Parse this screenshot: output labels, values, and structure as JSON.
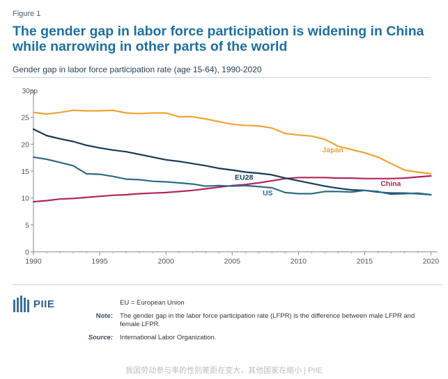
{
  "figure_label": "Figure 1",
  "title": "The gender gap in labor force participation is widening in China while narrowing in other parts of the world",
  "chart_data": {
    "type": "line",
    "subtitle": "Gender gap in labor force participation rate (age 15-64), 1990-2020",
    "x": [
      1990,
      1991,
      1992,
      1993,
      1994,
      1995,
      1996,
      1997,
      1998,
      1999,
      2000,
      2001,
      2002,
      2003,
      2004,
      2005,
      2006,
      2007,
      2008,
      2009,
      2010,
      2011,
      2012,
      2013,
      2014,
      2015,
      2016,
      2017,
      2018,
      2019,
      2020
    ],
    "series": [
      {
        "name": "Japan",
        "color": "#f0a233",
        "values": [
          25.9,
          25.6,
          25.9,
          26.3,
          26.2,
          26.2,
          26.3,
          25.8,
          25.7,
          25.8,
          25.8,
          25.1,
          25.1,
          24.7,
          24.2,
          23.7,
          23.5,
          23.4,
          23.0,
          22.0,
          21.7,
          21.5,
          20.9,
          19.6,
          19.0,
          18.4,
          17.6,
          16.4,
          15.2,
          14.8,
          14.5
        ]
      },
      {
        "name": "China",
        "color": "#b2245c",
        "values": [
          9.3,
          9.5,
          9.8,
          9.9,
          10.1,
          10.3,
          10.5,
          10.6,
          10.8,
          10.9,
          11.0,
          11.2,
          11.4,
          11.7,
          12.0,
          12.3,
          12.5,
          12.8,
          13.2,
          13.6,
          13.8,
          13.8,
          13.8,
          13.7,
          13.7,
          13.6,
          13.6,
          13.6,
          13.7,
          13.9,
          14.1
        ]
      },
      {
        "name": "EU28",
        "color": "#163a56",
        "values": [
          22.8,
          21.6,
          21.0,
          20.5,
          19.8,
          19.3,
          18.9,
          18.6,
          18.1,
          17.6,
          17.1,
          16.8,
          16.4,
          16.0,
          15.5,
          15.2,
          14.8,
          14.6,
          14.3,
          13.7,
          13.2,
          12.7,
          12.2,
          11.8,
          11.5,
          11.4,
          11.1,
          10.9,
          10.9,
          10.8,
          10.6
        ]
      },
      {
        "name": "US",
        "color": "#2c6b85",
        "values": [
          17.6,
          17.2,
          16.6,
          16.0,
          14.5,
          14.4,
          14.0,
          13.5,
          13.4,
          13.1,
          13.0,
          12.8,
          12.6,
          12.2,
          12.3,
          12.2,
          12.3,
          12.1,
          11.9,
          11.0,
          10.8,
          10.8,
          11.2,
          11.2,
          11.1,
          11.4,
          11.2,
          10.7,
          10.8,
          10.9,
          10.6
        ]
      }
    ],
    "y_ticks": [
      "0",
      "5",
      "10",
      "15",
      "20",
      "25",
      "30pp"
    ],
    "x_ticks": [
      "1990",
      "1995",
      "2000",
      "2005",
      "2010",
      "2015",
      "2020"
    ],
    "ylim": [
      0,
      30
    ],
    "xlim": [
      1990,
      2020.5
    ],
    "grid": false,
    "annotations": [
      "Japan",
      "China",
      "EU28",
      "US"
    ]
  },
  "notes": {
    "eu_line": "EU = European Union",
    "note_label": "Note:",
    "note_text": "The gender gap in the labor force participation rate (LFPR) is the difference between male LFPR and female LFPR.",
    "source_label": "Source:",
    "source_text": "International Labor Organization."
  },
  "logo_text": "PIIE",
  "footer_text": "我国劳动参与率的性别差距在变大，其他国家在缩小 | PIIE"
}
